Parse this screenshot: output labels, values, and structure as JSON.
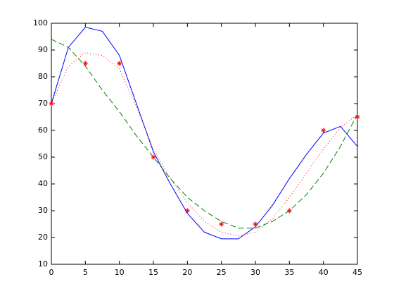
{
  "chart_data": {
    "type": "line",
    "xlim": [
      0,
      45
    ],
    "xticks": [
      0,
      5,
      10,
      15,
      20,
      25,
      30,
      35,
      40,
      45
    ],
    "ylim": [
      10,
      100
    ],
    "yticks": [
      10,
      20,
      30,
      40,
      50,
      60,
      70,
      80,
      90,
      100
    ],
    "series": [
      {
        "color": "#0000ff",
        "linestyle": "solid",
        "marker": "none",
        "x": [
          0,
          2.5,
          5,
          7.5,
          10,
          12.5,
          15,
          17.5,
          20,
          22.5,
          25,
          27.5,
          30,
          32.5,
          35,
          37.5,
          40,
          42.5,
          45
        ],
        "values": [
          70,
          91,
          98.5,
          97,
          88,
          70,
          52,
          40,
          29,
          22,
          19.5,
          19.5,
          24,
          32,
          42,
          51,
          59,
          61.5,
          54
        ]
      },
      {
        "color": "#ff0000",
        "linestyle": "dotted",
        "marker": "none",
        "x": [
          0,
          2.5,
          5,
          7.5,
          10,
          12.5,
          15,
          17.5,
          20,
          22.5,
          25,
          27.5,
          30,
          32.5,
          35,
          37.5,
          40,
          42.5,
          45
        ],
        "values": [
          70,
          84,
          89,
          88,
          83,
          69,
          53,
          42,
          33,
          26,
          22,
          20.5,
          22,
          27,
          35,
          44,
          53,
          61,
          66
        ]
      },
      {
        "color": "#008000",
        "linestyle": "dashed",
        "marker": "none",
        "x": [
          0,
          2.5,
          5,
          7.5,
          10,
          12.5,
          15,
          17.5,
          20,
          22.5,
          25,
          27.5,
          30,
          32.5,
          35,
          37.5,
          40,
          42.5,
          45
        ],
        "values": [
          94,
          91,
          84,
          75,
          67,
          58,
          50,
          42,
          35,
          30,
          26,
          23.5,
          23.5,
          26,
          30,
          36,
          44,
          54,
          66
        ]
      },
      {
        "color": "#ff0000",
        "linestyle": "none",
        "marker": "asterisk",
        "x": [
          0,
          5,
          10,
          15,
          20,
          25,
          30,
          35,
          40,
          45
        ],
        "values": [
          70,
          85,
          85,
          50,
          30,
          25,
          25,
          30,
          60,
          65
        ]
      }
    ]
  }
}
